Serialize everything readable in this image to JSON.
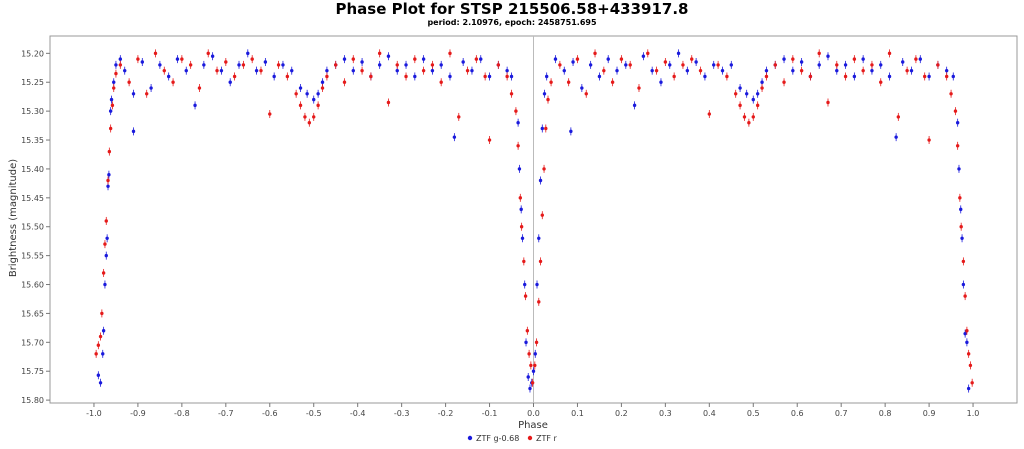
{
  "chart_data": {
    "type": "scatter",
    "title": "Phase Plot for STSP 215506.58+433917.8",
    "subtitle": "period: 2.10976, epoch: 2458751.695",
    "xlabel": "Phase",
    "ylabel": "Brightness (magnitude)",
    "xlim": [
      -1.1,
      1.1
    ],
    "ylim": [
      15.17,
      15.805
    ],
    "y_reversed": true,
    "x_ticks": [
      "-1.0",
      "-0.9",
      "-0.8",
      "-0.7",
      "-0.6",
      "-0.5",
      "-0.4",
      "-0.3",
      "-0.2",
      "-0.1",
      "0.0",
      "0.1",
      "0.2",
      "0.3",
      "0.4",
      "0.5",
      "0.6",
      "0.7",
      "0.8",
      "0.9",
      "1.0"
    ],
    "y_ticks": [
      "15.20",
      "15.25",
      "15.30",
      "15.35",
      "15.40",
      "15.45",
      "15.50",
      "15.55",
      "15.60",
      "15.65",
      "15.70",
      "15.75",
      "15.80"
    ],
    "grid": false,
    "legend_position": "bottom-center",
    "series": [
      {
        "name": "ZTF g-0.68",
        "color": "#1a1adc",
        "points": [
          [
            -0.99,
            15.757
          ],
          [
            -0.985,
            15.77
          ],
          [
            -0.98,
            15.72
          ],
          [
            -0.978,
            15.68
          ],
          [
            -0.975,
            15.6
          ],
          [
            -0.972,
            15.55
          ],
          [
            -0.97,
            15.52
          ],
          [
            -0.968,
            15.43
          ],
          [
            -0.966,
            15.41
          ],
          [
            -0.962,
            15.3
          ],
          [
            -0.96,
            15.28
          ],
          [
            -0.955,
            15.25
          ],
          [
            -0.95,
            15.22
          ],
          [
            -0.94,
            15.21
          ],
          [
            -0.93,
            15.23
          ],
          [
            -0.91,
            15.27
          ],
          [
            -0.91,
            15.335
          ],
          [
            -0.89,
            15.215
          ],
          [
            -0.87,
            15.26
          ],
          [
            -0.85,
            15.22
          ],
          [
            -0.83,
            15.24
          ],
          [
            -0.81,
            15.21
          ],
          [
            -0.79,
            15.23
          ],
          [
            -0.77,
            15.29
          ],
          [
            -0.75,
            15.22
          ],
          [
            -0.73,
            15.205
          ],
          [
            -0.71,
            15.23
          ],
          [
            -0.69,
            15.25
          ],
          [
            -0.67,
            15.22
          ],
          [
            -0.65,
            15.2
          ],
          [
            -0.63,
            15.23
          ],
          [
            -0.61,
            15.215
          ],
          [
            -0.59,
            15.24
          ],
          [
            -0.57,
            15.22
          ],
          [
            -0.55,
            15.23
          ],
          [
            -0.53,
            15.26
          ],
          [
            -0.515,
            15.27
          ],
          [
            -0.5,
            15.28
          ],
          [
            -0.49,
            15.27
          ],
          [
            -0.48,
            15.25
          ],
          [
            -0.47,
            15.23
          ],
          [
            -0.45,
            15.22
          ],
          [
            -0.43,
            15.21
          ],
          [
            -0.41,
            15.23
          ],
          [
            -0.39,
            15.215
          ],
          [
            -0.37,
            15.24
          ],
          [
            -0.35,
            15.22
          ],
          [
            -0.33,
            15.205
          ],
          [
            -0.31,
            15.23
          ],
          [
            -0.29,
            15.22
          ],
          [
            -0.27,
            15.24
          ],
          [
            -0.25,
            15.21
          ],
          [
            -0.23,
            15.23
          ],
          [
            -0.21,
            15.22
          ],
          [
            -0.19,
            15.24
          ],
          [
            -0.18,
            15.345
          ],
          [
            -0.16,
            15.215
          ],
          [
            -0.14,
            15.23
          ],
          [
            -0.12,
            15.21
          ],
          [
            -0.1,
            15.24
          ],
          [
            -0.08,
            15.22
          ],
          [
            -0.06,
            15.23
          ],
          [
            -0.05,
            15.24
          ],
          [
            -0.035,
            15.32
          ],
          [
            -0.032,
            15.4
          ],
          [
            -0.028,
            15.47
          ],
          [
            -0.025,
            15.52
          ],
          [
            -0.02,
            15.6
          ],
          [
            -0.017,
            15.7
          ],
          [
            -0.012,
            15.76
          ],
          [
            -0.008,
            15.78
          ],
          [
            -0.004,
            15.77
          ],
          [
            0.0,
            15.75
          ],
          [
            0.004,
            15.72
          ],
          [
            0.008,
            15.6
          ],
          [
            0.012,
            15.52
          ],
          [
            0.016,
            15.42
          ],
          [
            0.02,
            15.33
          ],
          [
            0.025,
            15.27
          ],
          [
            0.03,
            15.24
          ],
          [
            0.05,
            15.21
          ],
          [
            0.07,
            15.23
          ],
          [
            0.085,
            15.335
          ],
          [
            0.09,
            15.215
          ],
          [
            0.11,
            15.26
          ],
          [
            0.13,
            15.22
          ],
          [
            0.15,
            15.24
          ],
          [
            0.17,
            15.21
          ],
          [
            0.19,
            15.23
          ],
          [
            0.21,
            15.22
          ],
          [
            0.23,
            15.29
          ],
          [
            0.25,
            15.205
          ],
          [
            0.27,
            15.23
          ],
          [
            0.29,
            15.25
          ],
          [
            0.31,
            15.22
          ],
          [
            0.33,
            15.2
          ],
          [
            0.35,
            15.23
          ],
          [
            0.37,
            15.215
          ],
          [
            0.39,
            15.24
          ],
          [
            0.41,
            15.22
          ],
          [
            0.43,
            15.23
          ],
          [
            0.45,
            15.22
          ],
          [
            0.47,
            15.26
          ],
          [
            0.485,
            15.27
          ],
          [
            0.5,
            15.28
          ],
          [
            0.51,
            15.27
          ],
          [
            0.52,
            15.25
          ],
          [
            0.53,
            15.23
          ],
          [
            0.55,
            15.22
          ],
          [
            0.57,
            15.21
          ],
          [
            0.59,
            15.23
          ],
          [
            0.61,
            15.215
          ],
          [
            0.63,
            15.24
          ],
          [
            0.65,
            15.22
          ],
          [
            0.67,
            15.205
          ],
          [
            0.69,
            15.23
          ],
          [
            0.71,
            15.22
          ],
          [
            0.73,
            15.24
          ],
          [
            0.75,
            15.21
          ],
          [
            0.77,
            15.23
          ],
          [
            0.79,
            15.22
          ],
          [
            0.81,
            15.24
          ],
          [
            0.825,
            15.345
          ],
          [
            0.84,
            15.215
          ],
          [
            0.86,
            15.23
          ],
          [
            0.88,
            15.21
          ],
          [
            0.9,
            15.24
          ],
          [
            0.92,
            15.22
          ],
          [
            0.94,
            15.23
          ],
          [
            0.955,
            15.24
          ],
          [
            0.965,
            15.32
          ],
          [
            0.968,
            15.4
          ],
          [
            0.972,
            15.47
          ],
          [
            0.975,
            15.52
          ],
          [
            0.978,
            15.6
          ],
          [
            0.982,
            15.685
          ],
          [
            0.986,
            15.7
          ],
          [
            0.99,
            15.78
          ]
        ]
      },
      {
        "name": "ZTF r",
        "color": "#e51a1a",
        "points": [
          [
            -0.995,
            15.72
          ],
          [
            -0.99,
            15.705
          ],
          [
            -0.985,
            15.69
          ],
          [
            -0.982,
            15.65
          ],
          [
            -0.978,
            15.58
          ],
          [
            -0.975,
            15.53
          ],
          [
            -0.972,
            15.49
          ],
          [
            -0.968,
            15.42
          ],
          [
            -0.965,
            15.37
          ],
          [
            -0.962,
            15.33
          ],
          [
            -0.958,
            15.29
          ],
          [
            -0.955,
            15.26
          ],
          [
            -0.95,
            15.235
          ],
          [
            -0.94,
            15.22
          ],
          [
            -0.92,
            15.25
          ],
          [
            -0.9,
            15.21
          ],
          [
            -0.88,
            15.27
          ],
          [
            -0.86,
            15.2
          ],
          [
            -0.84,
            15.23
          ],
          [
            -0.82,
            15.25
          ],
          [
            -0.8,
            15.21
          ],
          [
            -0.78,
            15.22
          ],
          [
            -0.76,
            15.26
          ],
          [
            -0.74,
            15.2
          ],
          [
            -0.72,
            15.23
          ],
          [
            -0.7,
            15.215
          ],
          [
            -0.68,
            15.24
          ],
          [
            -0.66,
            15.22
          ],
          [
            -0.64,
            15.21
          ],
          [
            -0.62,
            15.23
          ],
          [
            -0.6,
            15.305
          ],
          [
            -0.58,
            15.22
          ],
          [
            -0.56,
            15.24
          ],
          [
            -0.54,
            15.27
          ],
          [
            -0.53,
            15.29
          ],
          [
            -0.52,
            15.31
          ],
          [
            -0.51,
            15.32
          ],
          [
            -0.5,
            15.31
          ],
          [
            -0.49,
            15.29
          ],
          [
            -0.48,
            15.26
          ],
          [
            -0.47,
            15.24
          ],
          [
            -0.45,
            15.22
          ],
          [
            -0.43,
            15.25
          ],
          [
            -0.41,
            15.21
          ],
          [
            -0.39,
            15.23
          ],
          [
            -0.37,
            15.24
          ],
          [
            -0.35,
            15.2
          ],
          [
            -0.33,
            15.285
          ],
          [
            -0.31,
            15.22
          ],
          [
            -0.29,
            15.24
          ],
          [
            -0.27,
            15.21
          ],
          [
            -0.25,
            15.23
          ],
          [
            -0.23,
            15.22
          ],
          [
            -0.21,
            15.25
          ],
          [
            -0.19,
            15.2
          ],
          [
            -0.17,
            15.31
          ],
          [
            -0.15,
            15.23
          ],
          [
            -0.13,
            15.21
          ],
          [
            -0.11,
            15.24
          ],
          [
            -0.1,
            15.35
          ],
          [
            -0.08,
            15.22
          ],
          [
            -0.06,
            15.24
          ],
          [
            -0.05,
            15.27
          ],
          [
            -0.04,
            15.3
          ],
          [
            -0.035,
            15.36
          ],
          [
            -0.03,
            15.45
          ],
          [
            -0.027,
            15.5
          ],
          [
            -0.022,
            15.56
          ],
          [
            -0.018,
            15.62
          ],
          [
            -0.014,
            15.68
          ],
          [
            -0.01,
            15.72
          ],
          [
            -0.006,
            15.74
          ],
          [
            -0.002,
            15.77
          ],
          [
            0.003,
            15.74
          ],
          [
            0.007,
            15.7
          ],
          [
            0.012,
            15.63
          ],
          [
            0.016,
            15.56
          ],
          [
            0.02,
            15.48
          ],
          [
            0.024,
            15.4
          ],
          [
            0.028,
            15.33
          ],
          [
            0.033,
            15.28
          ],
          [
            0.04,
            15.25
          ],
          [
            0.06,
            15.22
          ],
          [
            0.08,
            15.25
          ],
          [
            0.1,
            15.21
          ],
          [
            0.12,
            15.27
          ],
          [
            0.14,
            15.2
          ],
          [
            0.16,
            15.23
          ],
          [
            0.18,
            15.25
          ],
          [
            0.2,
            15.21
          ],
          [
            0.22,
            15.22
          ],
          [
            0.24,
            15.26
          ],
          [
            0.26,
            15.2
          ],
          [
            0.28,
            15.23
          ],
          [
            0.3,
            15.215
          ],
          [
            0.32,
            15.24
          ],
          [
            0.34,
            15.22
          ],
          [
            0.36,
            15.21
          ],
          [
            0.38,
            15.23
          ],
          [
            0.4,
            15.305
          ],
          [
            0.42,
            15.22
          ],
          [
            0.44,
            15.24
          ],
          [
            0.46,
            15.27
          ],
          [
            0.47,
            15.29
          ],
          [
            0.48,
            15.31
          ],
          [
            0.49,
            15.32
          ],
          [
            0.5,
            15.31
          ],
          [
            0.51,
            15.29
          ],
          [
            0.52,
            15.26
          ],
          [
            0.53,
            15.24
          ],
          [
            0.55,
            15.22
          ],
          [
            0.57,
            15.25
          ],
          [
            0.59,
            15.21
          ],
          [
            0.61,
            15.23
          ],
          [
            0.63,
            15.24
          ],
          [
            0.65,
            15.2
          ],
          [
            0.67,
            15.285
          ],
          [
            0.69,
            15.22
          ],
          [
            0.71,
            15.24
          ],
          [
            0.73,
            15.21
          ],
          [
            0.75,
            15.23
          ],
          [
            0.77,
            15.22
          ],
          [
            0.79,
            15.25
          ],
          [
            0.81,
            15.2
          ],
          [
            0.83,
            15.31
          ],
          [
            0.85,
            15.23
          ],
          [
            0.87,
            15.21
          ],
          [
            0.89,
            15.24
          ],
          [
            0.9,
            15.35
          ],
          [
            0.92,
            15.22
          ],
          [
            0.94,
            15.24
          ],
          [
            0.95,
            15.27
          ],
          [
            0.96,
            15.3
          ],
          [
            0.965,
            15.36
          ],
          [
            0.97,
            15.45
          ],
          [
            0.973,
            15.5
          ],
          [
            0.978,
            15.56
          ],
          [
            0.982,
            15.62
          ],
          [
            0.986,
            15.68
          ],
          [
            0.99,
            15.72
          ],
          [
            0.994,
            15.74
          ],
          [
            0.998,
            15.77
          ]
        ]
      }
    ]
  }
}
